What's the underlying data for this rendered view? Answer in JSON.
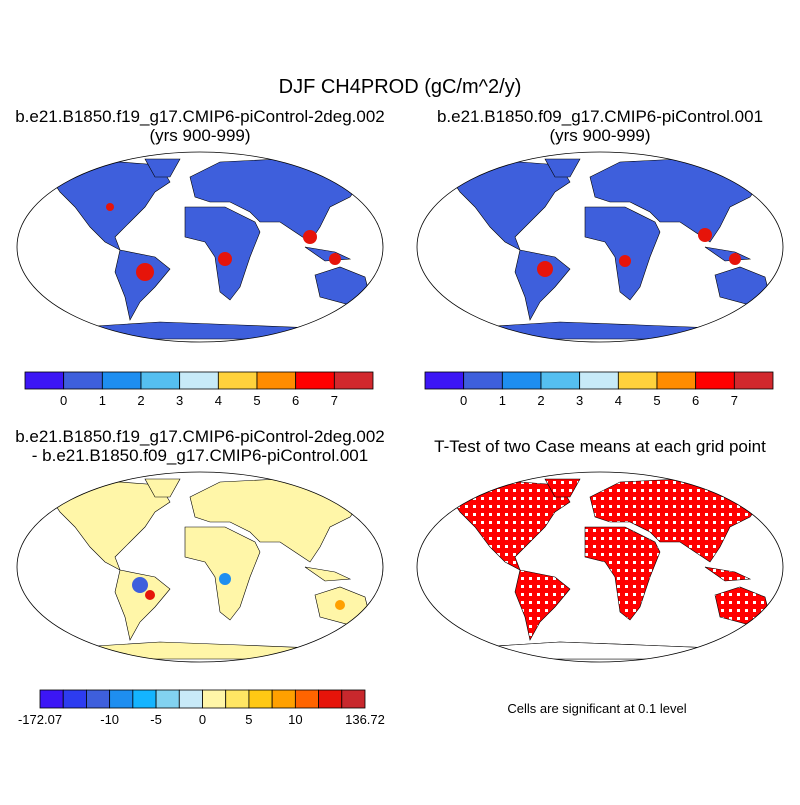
{
  "title": "DJF CH4PROD (gC/m^2/y)",
  "panels": [
    {
      "title_lines": [
        "b.e21.B1850.f19_g17.CMIP6-piControl-2deg.002",
        "(yrs 900-999)"
      ],
      "colorbar": {
        "colors": [
          "#3c16f5",
          "#3e5fdc",
          "#1e8ef0",
          "#55bff0",
          "#c8eaf8",
          "#ffd23c",
          "#ff8c00",
          "#ff0000",
          "#d2282d"
        ],
        "boundary_labels": [
          null,
          "0",
          "1",
          "2",
          "3",
          "4",
          "5",
          "6",
          "7",
          null
        ]
      }
    },
    {
      "title_lines": [
        "b.e21.B1850.f09_g17.CMIP6-piControl.001",
        "(yrs 900-999)"
      ],
      "colorbar": {
        "colors": [
          "#3c16f5",
          "#3e5fdc",
          "#1e8ef0",
          "#55bff0",
          "#c8eaf8",
          "#ffd23c",
          "#ff8c00",
          "#ff0000",
          "#d2282d"
        ],
        "boundary_labels": [
          null,
          "0",
          "1",
          "2",
          "3",
          "4",
          "5",
          "6",
          "7",
          null
        ]
      }
    },
    {
      "title_lines": [
        "b.e21.B1850.f19_g17.CMIP6-piControl-2deg.002",
        "- b.e21.B1850.f09_g17.CMIP6-piControl.001"
      ],
      "colorbar": {
        "colors": [
          "#3c16f5",
          "#2d3cf0",
          "#3e5fdc",
          "#1e8ef0",
          "#14b4ff",
          "#82d2f0",
          "#c8eaf8",
          "#fff6a8",
          "#ffe664",
          "#ffc814",
          "#ffa000",
          "#ff6400",
          "#e6140a",
          "#c8282d"
        ],
        "boundary_labels": [
          "-172.07",
          null,
          null,
          "-10",
          null,
          "-5",
          null,
          "0",
          null,
          "5",
          null,
          "10",
          null,
          null,
          "136.72"
        ]
      }
    },
    {
      "title_lines": [
        "T-Test of two Case means at each grid point"
      ],
      "note": "Cells are significant at 0.1 level"
    }
  ]
}
